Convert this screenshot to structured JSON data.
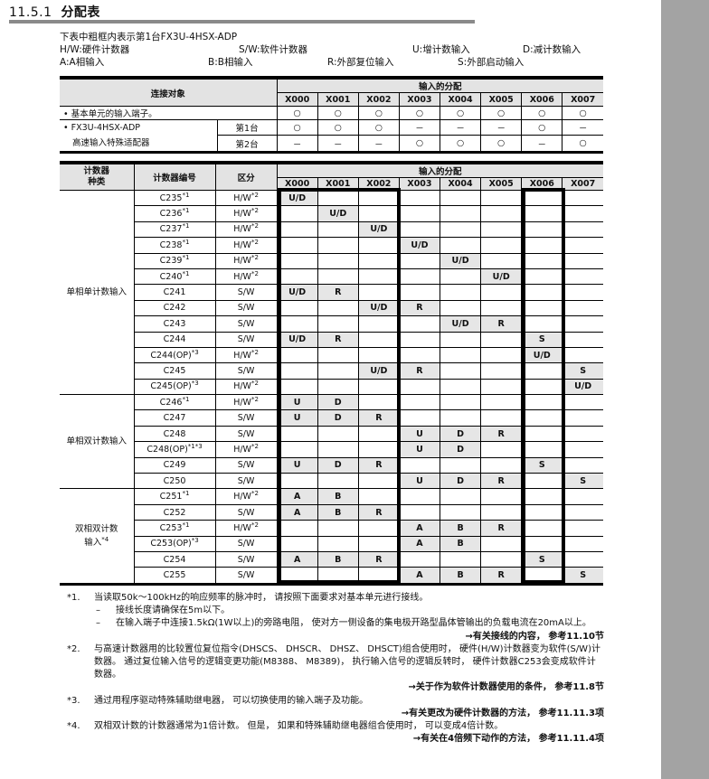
{
  "section": {
    "number": "11.5.1",
    "title": "分配表"
  },
  "intro": "下表中粗框内表示第1台FX3U-4HSX-ADP",
  "legend": [
    [
      "H/W:硬件计数器",
      "S/W:软件计数器",
      "U:增计数输入",
      "D:减计数输入"
    ],
    [
      "A:A相输入",
      "B:B相输入",
      "R:外部复位输入",
      "S:外部启动输入"
    ]
  ],
  "inputs": [
    "X000",
    "X001",
    "X002",
    "X003",
    "X004",
    "X005",
    "X006",
    "X007"
  ],
  "table1": {
    "header_target": "连接对象",
    "header_alloc": "输入的分配",
    "row_base": {
      "label": "• 基本单元的输入端子。",
      "cells": [
        "○",
        "○",
        "○",
        "○",
        "○",
        "○",
        "○",
        "○"
      ]
    },
    "adapter_label1": "• FX3U-4HSX-ADP",
    "adapter_label2": "高速输入特殊适配器",
    "row_unit1": {
      "label": "第1台",
      "cells": [
        "○",
        "○",
        "○",
        "－",
        "－",
        "－",
        "○",
        "－"
      ]
    },
    "row_unit2": {
      "label": "第2台",
      "cells": [
        "－",
        "－",
        "－",
        "○",
        "○",
        "○",
        "－",
        "○"
      ]
    }
  },
  "table2": {
    "header_kind": "计数器\n种类",
    "header_number": "计数器编号",
    "header_class": "区分",
    "header_alloc": "输入的分配",
    "groups": [
      {
        "kind": "单相单计数输入",
        "kind_sup": "",
        "rows": [
          {
            "no": "C235",
            "no_sup": "*1",
            "cls": "H/W",
            "cls_sup": "*2",
            "cells": [
              "U/D",
              "",
              "",
              "",
              "",
              "",
              "",
              ""
            ]
          },
          {
            "no": "C236",
            "no_sup": "*1",
            "cls": "H/W",
            "cls_sup": "*2",
            "cells": [
              "",
              "U/D",
              "",
              "",
              "",
              "",
              "",
              ""
            ]
          },
          {
            "no": "C237",
            "no_sup": "*1",
            "cls": "H/W",
            "cls_sup": "*2",
            "cells": [
              "",
              "",
              "U/D",
              "",
              "",
              "",
              "",
              ""
            ]
          },
          {
            "no": "C238",
            "no_sup": "*1",
            "cls": "H/W",
            "cls_sup": "*2",
            "cells": [
              "",
              "",
              "",
              "U/D",
              "",
              "",
              "",
              ""
            ]
          },
          {
            "no": "C239",
            "no_sup": "*1",
            "cls": "H/W",
            "cls_sup": "*2",
            "cells": [
              "",
              "",
              "",
              "",
              "U/D",
              "",
              "",
              ""
            ]
          },
          {
            "no": "C240",
            "no_sup": "*1",
            "cls": "H/W",
            "cls_sup": "*2",
            "cells": [
              "",
              "",
              "",
              "",
              "",
              "U/D",
              "",
              ""
            ]
          },
          {
            "no": "C241",
            "no_sup": "",
            "cls": "S/W",
            "cls_sup": "",
            "cells": [
              "U/D",
              "R",
              "",
              "",
              "",
              "",
              "",
              ""
            ]
          },
          {
            "no": "C242",
            "no_sup": "",
            "cls": "S/W",
            "cls_sup": "",
            "cells": [
              "",
              "",
              "U/D",
              "R",
              "",
              "",
              "",
              ""
            ]
          },
          {
            "no": "C243",
            "no_sup": "",
            "cls": "S/W",
            "cls_sup": "",
            "cells": [
              "",
              "",
              "",
              "",
              "U/D",
              "R",
              "",
              ""
            ]
          },
          {
            "no": "C244",
            "no_sup": "",
            "cls": "S/W",
            "cls_sup": "",
            "cells": [
              "U/D",
              "R",
              "",
              "",
              "",
              "",
              "S",
              ""
            ]
          },
          {
            "no": "C244(OP)",
            "no_sup": "*3",
            "cls": "H/W",
            "cls_sup": "*2",
            "cells": [
              "",
              "",
              "",
              "",
              "",
              "",
              "U/D",
              ""
            ]
          },
          {
            "no": "C245",
            "no_sup": "",
            "cls": "S/W",
            "cls_sup": "",
            "cells": [
              "",
              "",
              "U/D",
              "R",
              "",
              "",
              "",
              "S"
            ]
          },
          {
            "no": "C245(OP)",
            "no_sup": "*3",
            "cls": "H/W",
            "cls_sup": "*2",
            "cells": [
              "",
              "",
              "",
              "",
              "",
              "",
              "",
              "U/D"
            ]
          }
        ]
      },
      {
        "kind": "单相双计数输入",
        "kind_sup": "",
        "rows": [
          {
            "no": "C246",
            "no_sup": "*1",
            "cls": "H/W",
            "cls_sup": "*2",
            "cells": [
              "U",
              "D",
              "",
              "",
              "",
              "",
              "",
              ""
            ]
          },
          {
            "no": "C247",
            "no_sup": "",
            "cls": "S/W",
            "cls_sup": "",
            "cells": [
              "U",
              "D",
              "R",
              "",
              "",
              "",
              "",
              ""
            ]
          },
          {
            "no": "C248",
            "no_sup": "",
            "cls": "S/W",
            "cls_sup": "",
            "cells": [
              "",
              "",
              "",
              "U",
              "D",
              "R",
              "",
              ""
            ]
          },
          {
            "no": "C248(OP)",
            "no_sup": "*1*3",
            "cls": "H/W",
            "cls_sup": "*2",
            "cells": [
              "",
              "",
              "",
              "U",
              "D",
              "",
              "",
              ""
            ]
          },
          {
            "no": "C249",
            "no_sup": "",
            "cls": "S/W",
            "cls_sup": "",
            "cells": [
              "U",
              "D",
              "R",
              "",
              "",
              "",
              "S",
              ""
            ]
          },
          {
            "no": "C250",
            "no_sup": "",
            "cls": "S/W",
            "cls_sup": "",
            "cells": [
              "",
              "",
              "",
              "U",
              "D",
              "R",
              "",
              "S"
            ]
          }
        ]
      },
      {
        "kind": "双相双计数\n输入",
        "kind_sup": "*4",
        "rows": [
          {
            "no": "C251",
            "no_sup": "*1",
            "cls": "H/W",
            "cls_sup": "*2",
            "cells": [
              "A",
              "B",
              "",
              "",
              "",
              "",
              "",
              ""
            ]
          },
          {
            "no": "C252",
            "no_sup": "",
            "cls": "S/W",
            "cls_sup": "",
            "cells": [
              "A",
              "B",
              "R",
              "",
              "",
              "",
              "",
              ""
            ]
          },
          {
            "no": "C253",
            "no_sup": "*1",
            "cls": "H/W",
            "cls_sup": "*2",
            "cells": [
              "",
              "",
              "",
              "A",
              "B",
              "R",
              "",
              ""
            ]
          },
          {
            "no": "C253(OP)",
            "no_sup": "*3",
            "cls": "S/W",
            "cls_sup": "",
            "cells": [
              "",
              "",
              "",
              "A",
              "B",
              "",
              "",
              ""
            ]
          },
          {
            "no": "C254",
            "no_sup": "",
            "cls": "S/W",
            "cls_sup": "",
            "cells": [
              "A",
              "B",
              "R",
              "",
              "",
              "",
              "S",
              ""
            ]
          },
          {
            "no": "C255",
            "no_sup": "",
            "cls": "S/W",
            "cls_sup": "",
            "cells": [
              "",
              "",
              "",
              "A",
              "B",
              "R",
              "",
              "S"
            ]
          }
        ]
      }
    ]
  },
  "notes": [
    {
      "mark": "*1.",
      "text": "当读取50k～100kHz的响应频率的脉冲时， 请按照下面要求对基本单元进行接线。",
      "subs": [
        "接线长度请确保在5m以下。",
        "在输入端子中连接1.5kΩ(1W以上)的旁路电阻， 使对方一侧设备的集电极开路型晶体管输出的负载电流在20mA以上。"
      ],
      "ref": "→有关接线的内容， 参考11.10节"
    },
    {
      "mark": "*2.",
      "text": "与高速计数器用的比较置位复位指令(DHSCS、 DHSCR、 DHSZ、 DHSCT)组合使用时， 硬件(H/W)计数器变为软件(S/W)计数器。 通过复位输入信号的逻辑变更功能(M8388、 M8389)， 执行输入信号的逻辑反转时， 硬件计数器C253会变成软件计数器。",
      "subs": [],
      "ref": "→关于作为软件计数器使用的条件， 参考11.8节"
    },
    {
      "mark": "*3.",
      "text": "通过用程序驱动特殊辅助继电器， 可以切换使用的输入端子及功能。",
      "subs": [],
      "ref": "→有关更改为硬件计数器的方法， 参考11.11.3项"
    },
    {
      "mark": "*4.",
      "text": "双相双计数的计数器通常为1倍计数。 但是， 如果和特殊辅助继电器组合使用时， 可以变成4倍计数。",
      "subs": [],
      "ref": "→有关在4倍频下动作的方法， 参考11.11.4项"
    }
  ]
}
